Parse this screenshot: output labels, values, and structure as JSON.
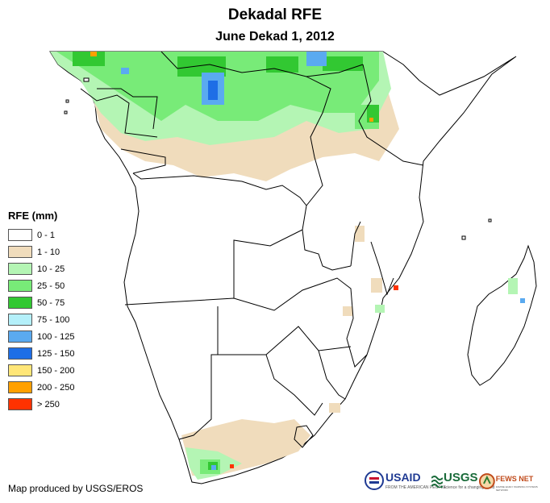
{
  "title": "Dekadal RFE",
  "subtitle": "June Dekad 1, 2012",
  "legend": {
    "title": "RFE (mm)",
    "items": [
      {
        "label": "0 - 1",
        "color": "#ffffff"
      },
      {
        "label": "1 - 10",
        "color": "#f0dcbc"
      },
      {
        "label": "10 - 25",
        "color": "#b4f5b4"
      },
      {
        "label": "25 - 50",
        "color": "#78eb78"
      },
      {
        "label": "50 - 75",
        "color": "#32c832"
      },
      {
        "label": "75 - 100",
        "color": "#b4f0fa"
      },
      {
        "label": "100 - 125",
        "color": "#5aaaf0"
      },
      {
        "label": "125 - 150",
        "color": "#1e6ee6"
      },
      {
        "label": "150 - 200",
        "color": "#ffe678"
      },
      {
        "label": "200 - 250",
        "color": "#ffa000"
      },
      {
        "label": "> 250",
        "color": "#ff3200"
      }
    ]
  },
  "credit": "Map produced by USGS/EROS",
  "logos": {
    "usaid": "USAID",
    "usaid_tagline": "FROM THE AMERICAN PEOPLE",
    "usgs": "USGS",
    "usgs_tagline": "science for a changing world",
    "fewsnet": "FEWS NET",
    "fewsnet_tagline": "FAMINE EARLY WARNING SYSTEMS NETWORK"
  }
}
